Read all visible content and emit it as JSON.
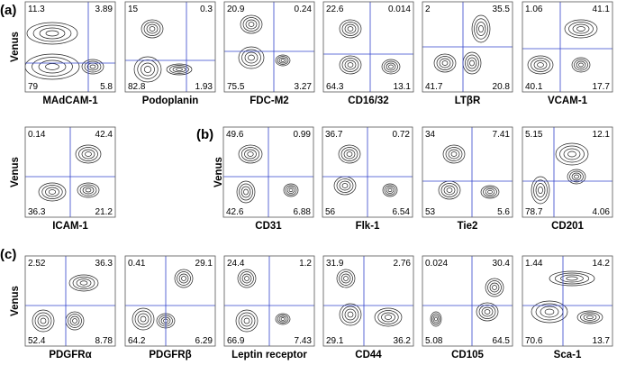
{
  "y_axis_label": "Venus",
  "panels": [
    {
      "label": "(a)",
      "plots": [
        {
          "marker": "MAdCAM-1",
          "quadrants": {
            "tl": "11.3",
            "tr": "3.89",
            "bl": "79",
            "br": "5.8"
          }
        },
        {
          "marker": "Podoplanin",
          "quadrants": {
            "tl": "15",
            "tr": "0.3",
            "bl": "82.8",
            "br": "1.93"
          }
        },
        {
          "marker": "FDC-M2",
          "quadrants": {
            "tl": "20.9",
            "tr": "0.24",
            "bl": "75.5",
            "br": "3.27"
          }
        },
        {
          "marker": "CD16/32",
          "quadrants": {
            "tl": "22.6",
            "tr": "0.014",
            "bl": "64.3",
            "br": "13.1"
          }
        },
        {
          "marker": "LTβR",
          "quadrants": {
            "tl": "2",
            "tr": "35.5",
            "bl": "41.7",
            "br": "20.8"
          }
        },
        {
          "marker": "VCAM-1",
          "quadrants": {
            "tl": "1.06",
            "tr": "41.1",
            "bl": "40.1",
            "br": "17.7"
          }
        },
        {
          "marker": "ICAM-1",
          "quadrants": {
            "tl": "0.14",
            "tr": "42.4",
            "bl": "36.3",
            "br": "21.2"
          }
        }
      ]
    },
    {
      "label": "(b)",
      "plots": [
        {
          "marker": "CD31",
          "quadrants": {
            "tl": "49.6",
            "tr": "0.99",
            "bl": "42.6",
            "br": "6.88"
          }
        },
        {
          "marker": "Flk-1",
          "quadrants": {
            "tl": "36.7",
            "tr": "0.72",
            "bl": "56",
            "br": "6.54"
          }
        },
        {
          "marker": "Tie2",
          "quadrants": {
            "tl": "34",
            "tr": "7.41",
            "bl": "53",
            "br": "5.6"
          }
        },
        {
          "marker": "CD201",
          "quadrants": {
            "tl": "5.15",
            "tr": "12.1",
            "bl": "78.7",
            "br": "4.06"
          }
        }
      ]
    },
    {
      "label": "(c)",
      "plots": [
        {
          "marker": "PDGFRα",
          "quadrants": {
            "tl": "2.52",
            "tr": "36.3",
            "bl": "52.4",
            "br": "8.78"
          }
        },
        {
          "marker": "PDGFRβ",
          "quadrants": {
            "tl": "0.41",
            "tr": "29.1",
            "bl": "64.2",
            "br": "6.29"
          }
        },
        {
          "marker": "Leptin receptor",
          "quadrants": {
            "tl": "24.4",
            "tr": "1.2",
            "bl": "66.9",
            "br": "7.43"
          }
        },
        {
          "marker": "CD44",
          "quadrants": {
            "tl": "31.9",
            "tr": "2.76",
            "bl": "29.1",
            "br": "36.2"
          }
        },
        {
          "marker": "CD105",
          "quadrants": {
            "tl": "0.024",
            "tr": "30.4",
            "bl": "5.08",
            "br": "64.5"
          }
        },
        {
          "marker": "Sca-1",
          "quadrants": {
            "tl": "1.44",
            "tr": "14.2",
            "bl": "70.6",
            "br": "13.7"
          }
        }
      ]
    }
  ]
}
